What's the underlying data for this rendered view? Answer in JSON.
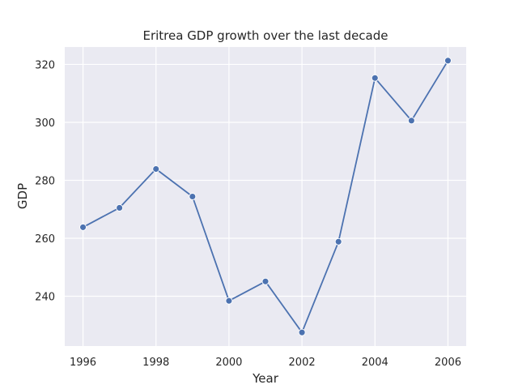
{
  "chart_data": {
    "type": "line",
    "title": "Eritrea GDP growth over the last decade",
    "xlabel": "Year",
    "ylabel": "GDP",
    "x": [
      1996,
      1997,
      1998,
      1999,
      2000,
      2001,
      2002,
      2003,
      2004,
      2005,
      2006
    ],
    "series": [
      {
        "values": [
          263.8,
          270.5,
          283.9,
          274.4,
          238.4,
          245.1,
          227.5,
          258.8,
          315.3,
          300.6,
          321.3
        ],
        "color": "#4c72b0",
        "marker": "circle"
      }
    ],
    "xlim": [
      1995.5,
      2006.5
    ],
    "ylim": [
      222.8,
      326.0
    ],
    "xticks": [
      1996,
      1998,
      2000,
      2002,
      2004,
      2006
    ],
    "yticks": [
      240,
      260,
      280,
      300,
      320
    ],
    "grid": true,
    "background": "#eaeaf2",
    "grid_color": "#ffffff"
  }
}
